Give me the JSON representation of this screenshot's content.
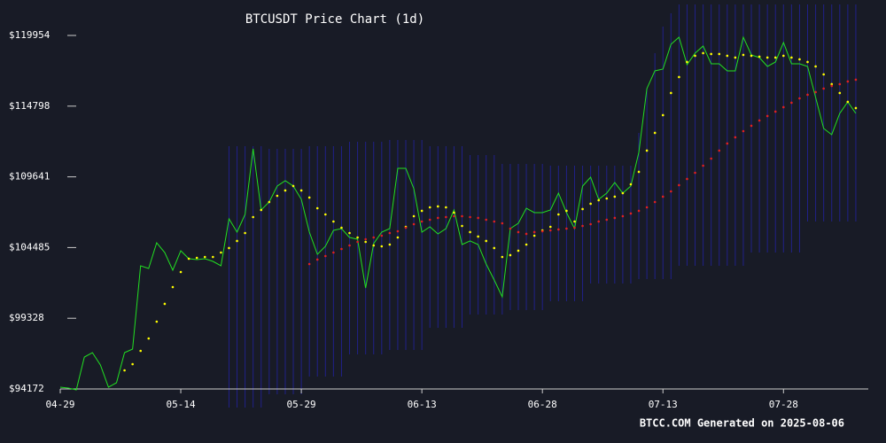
{
  "chart_data": {
    "type": "line",
    "title": "BTCUSDT Price Chart (1d)",
    "footer": "BTCC.COM Generated on 2025-08-06",
    "categories": [
      "04-29",
      null,
      null,
      null,
      null,
      null,
      null,
      null,
      null,
      null,
      null,
      null,
      null,
      null,
      null,
      "05-14",
      null,
      null,
      null,
      null,
      null,
      null,
      null,
      null,
      null,
      null,
      null,
      null,
      null,
      null,
      "05-29",
      null,
      null,
      null,
      null,
      null,
      null,
      null,
      null,
      null,
      null,
      null,
      null,
      null,
      null,
      "06-13",
      null,
      null,
      null,
      null,
      null,
      null,
      null,
      null,
      null,
      null,
      null,
      null,
      null,
      null,
      "06-28",
      null,
      null,
      null,
      null,
      null,
      null,
      null,
      null,
      null,
      null,
      null,
      null,
      null,
      null,
      "07-13",
      null,
      null,
      null,
      null,
      null,
      null,
      null,
      null,
      null,
      null,
      null,
      null,
      null,
      null,
      "07-28",
      null,
      null,
      null,
      null,
      null,
      null,
      null,
      null,
      null
    ],
    "ylim": [
      94172,
      119954
    ],
    "yticks": [
      {
        "value": 94172,
        "label": "$94172"
      },
      {
        "value": 99328,
        "label": "$99328"
      },
      {
        "value": 104485,
        "label": "$104485"
      },
      {
        "value": 109641,
        "label": "$109641"
      },
      {
        "value": 114798,
        "label": "$114798"
      },
      {
        "value": 119954,
        "label": "$119954"
      }
    ],
    "band": {
      "color": "#22229a",
      "upper": [
        null,
        null,
        null,
        null,
        null,
        null,
        null,
        null,
        null,
        null,
        null,
        null,
        null,
        null,
        null,
        null,
        null,
        null,
        null,
        null,
        null,
        111878,
        111878,
        111878,
        111878,
        111878,
        111684,
        111684,
        111684,
        111684,
        111684,
        111878,
        111878,
        111878,
        111878,
        111878,
        112201,
        112201,
        112201,
        112201,
        112201,
        112330,
        112330,
        112330,
        112330,
        112330,
        111878,
        111878,
        111878,
        111878,
        111878,
        111232,
        111232,
        111232,
        111232,
        110585,
        110585,
        110585,
        110585,
        110585,
        110585,
        110456,
        110456,
        110456,
        110456,
        110456,
        110456,
        110456,
        110456,
        110456,
        110456,
        110456,
        112847,
        116078,
        118663,
        120602,
        121571,
        122217,
        122217,
        122217,
        122217,
        122217,
        122217,
        122217,
        122217,
        122217,
        122217,
        122217,
        122217,
        122217,
        122217,
        122217,
        122217,
        122217,
        122217,
        122217,
        122217,
        122217,
        122217,
        122217
      ],
      "lower": [
        null,
        null,
        null,
        null,
        null,
        null,
        null,
        null,
        null,
        null,
        null,
        null,
        null,
        null,
        null,
        null,
        null,
        null,
        null,
        null,
        null,
        92815,
        92815,
        92815,
        92815,
        92815,
        93784,
        93784,
        93784,
        93784,
        93784,
        95077,
        95077,
        95077,
        95077,
        95077,
        96692,
        96692,
        96692,
        96692,
        96692,
        97015,
        97015,
        97015,
        97015,
        97015,
        98631,
        98631,
        98631,
        98631,
        98631,
        99600,
        99600,
        99600,
        99600,
        99600,
        99923,
        99923,
        99923,
        99923,
        99923,
        100569,
        100569,
        100569,
        100569,
        100569,
        101862,
        101862,
        101862,
        101862,
        101862,
        101862,
        102185,
        102185,
        102185,
        102185,
        102185,
        103154,
        103154,
        103154,
        103154,
        103154,
        103154,
        103154,
        103154,
        103154,
        104123,
        104123,
        104123,
        104123,
        104123,
        104123,
        104123,
        106385,
        106385,
        106385,
        106385,
        106385,
        106385,
        106385
      ]
    },
    "series": [
      {
        "color": "#22e022",
        "style": "line",
        "values": [
          94301,
          94237,
          94107,
          96498,
          96821,
          95917,
          94301,
          94624,
          96821,
          97080,
          103154,
          102960,
          104834,
          104123,
          102831,
          104253,
          103671,
          103607,
          103671,
          103477,
          103154,
          106579,
          105610,
          106902,
          111684,
          107225,
          107806,
          108970,
          109358,
          108970,
          107999,
          105610,
          103994,
          104576,
          105739,
          105868,
          105222,
          105093,
          101539,
          104770,
          105610,
          105868,
          110262,
          110262,
          108776,
          105610,
          105997,
          105481,
          105868,
          107225,
          104705,
          104964,
          104705,
          103283,
          102120,
          100892,
          105868,
          106256,
          107354,
          107031,
          107031,
          107225,
          108453,
          107031,
          105868,
          108970,
          109616,
          107999,
          108453,
          109228,
          108453,
          108970,
          111426,
          116078,
          117371,
          117500,
          119309,
          119826,
          117823,
          118663,
          119180,
          117888,
          117888,
          117371,
          117371,
          119826,
          118534,
          118340,
          117694,
          118017,
          119438,
          117888,
          117888,
          117694,
          115432,
          113170,
          112718,
          114269,
          115109,
          114269
        ]
      },
      {
        "color": "#ffff00",
        "style": "dots",
        "values": [
          null,
          null,
          null,
          null,
          null,
          null,
          null,
          null,
          95529,
          95981,
          96951,
          97855,
          99083,
          100376,
          101603,
          102702,
          103671,
          103736,
          103800,
          103800,
          104123,
          104447,
          104964,
          105545,
          106708,
          107225,
          107806,
          108259,
          108647,
          108970,
          108647,
          108130,
          107354,
          106902,
          106385,
          105933,
          105545,
          105222,
          104899,
          104640,
          104576,
          104705,
          105222,
          105997,
          106773,
          107161,
          107419,
          107484,
          107419,
          107031,
          106062,
          105610,
          105287,
          104964,
          104447,
          103800,
          103930,
          104253,
          104705,
          105351,
          105739,
          105997,
          106902,
          107161,
          106385,
          107290,
          107678,
          107936,
          108065,
          108195,
          108453,
          109099,
          110004,
          111555,
          112847,
          114140,
          115755,
          116918,
          118017,
          118469,
          118663,
          118598,
          118598,
          118469,
          118340,
          118534,
          118469,
          118405,
          118340,
          118340,
          118469,
          118340,
          118211,
          118017,
          117694,
          117112,
          116401,
          115755,
          115109,
          114657
        ]
      },
      {
        "color": "#e02020",
        "style": "dots",
        "values": [
          null,
          null,
          null,
          null,
          null,
          null,
          null,
          null,
          null,
          null,
          null,
          null,
          null,
          null,
          null,
          null,
          null,
          null,
          null,
          null,
          null,
          null,
          null,
          null,
          null,
          null,
          null,
          null,
          null,
          null,
          null,
          103283,
          103607,
          103865,
          104123,
          104382,
          104640,
          104899,
          105093,
          105222,
          105351,
          105545,
          105674,
          105933,
          106191,
          106385,
          106514,
          106644,
          106708,
          106773,
          106773,
          106708,
          106644,
          106514,
          106385,
          106256,
          105868,
          105610,
          105481,
          105610,
          105674,
          105739,
          105804,
          105868,
          105933,
          106062,
          106191,
          106385,
          106514,
          106644,
          106773,
          106967,
          107161,
          107419,
          107806,
          108195,
          108582,
          109035,
          109487,
          109939,
          110456,
          110973,
          111555,
          112072,
          112524,
          112976,
          113364,
          113752,
          114075,
          114398,
          114721,
          115044,
          115367,
          115626,
          115820,
          116078,
          116272,
          116401,
          116595,
          116724
        ]
      }
    ]
  }
}
